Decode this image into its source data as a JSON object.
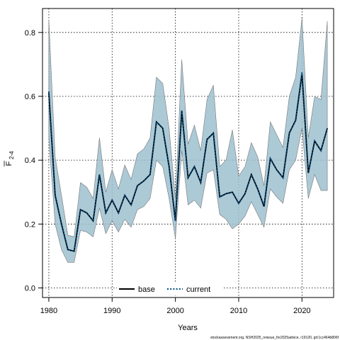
{
  "chart_data": {
    "type": "line",
    "title": "",
    "xlabel": "Years",
    "ylabel_main": "F",
    "ylabel_sub": "2-4",
    "xlim": [
      1979,
      2025
    ],
    "ylim": [
      -0.03,
      0.875
    ],
    "x_ticks": [
      1980,
      1990,
      2000,
      2010,
      2020
    ],
    "y_ticks": [
      0.0,
      0.2,
      0.4,
      0.6,
      0.8
    ],
    "y_tick_labels": [
      "0.0",
      "0.2",
      "0.4",
      "0.6",
      "0.8"
    ],
    "grid": true,
    "legend_position": "bottom-center",
    "colors": {
      "band": "#9dbfcf",
      "band_edge": "#777777",
      "base": "#000000",
      "current": "#004a7c"
    },
    "x": [
      1980,
      1981,
      1982,
      1983,
      1984,
      1985,
      1986,
      1987,
      1988,
      1989,
      1990,
      1991,
      1992,
      1993,
      1994,
      1995,
      1996,
      1997,
      1998,
      1999,
      2000,
      2001,
      2002,
      2003,
      2004,
      2005,
      2006,
      2007,
      2008,
      2009,
      2010,
      2011,
      2012,
      2013,
      2014,
      2015,
      2016,
      2017,
      2018,
      2019,
      2020,
      2021,
      2022,
      2023,
      2024
    ],
    "band_upper": [
      0.84,
      0.41,
      0.29,
      0.165,
      0.16,
      0.33,
      0.315,
      0.28,
      0.47,
      0.3,
      0.37,
      0.31,
      0.385,
      0.34,
      0.42,
      0.435,
      0.47,
      0.66,
      0.64,
      0.5,
      0.28,
      0.715,
      0.45,
      0.51,
      0.43,
      0.59,
      0.635,
      0.38,
      0.4,
      0.495,
      0.35,
      0.38,
      0.455,
      0.41,
      0.32,
      0.52,
      0.48,
      0.44,
      0.6,
      0.66,
      0.845,
      0.47,
      0.6,
      0.59,
      0.835
    ],
    "band_lower": [
      0.47,
      0.2,
      0.12,
      0.08,
      0.08,
      0.18,
      0.175,
      0.16,
      0.25,
      0.17,
      0.21,
      0.175,
      0.215,
      0.19,
      0.245,
      0.255,
      0.28,
      0.4,
      0.38,
      0.28,
      0.155,
      0.43,
      0.26,
      0.275,
      0.25,
      0.36,
      0.37,
      0.23,
      0.215,
      0.185,
      0.2,
      0.225,
      0.27,
      0.23,
      0.19,
      0.31,
      0.285,
      0.265,
      0.37,
      0.4,
      0.5,
      0.28,
      0.355,
      0.305,
      0.305
    ],
    "series": [
      {
        "name": "base",
        "values": [
          0.61,
          0.29,
          0.2,
          0.12,
          0.115,
          0.245,
          0.235,
          0.21,
          0.355,
          0.235,
          0.275,
          0.235,
          0.29,
          0.26,
          0.32,
          0.335,
          0.355,
          0.52,
          0.5,
          0.38,
          0.21,
          0.555,
          0.345,
          0.38,
          0.33,
          0.465,
          0.485,
          0.285,
          0.295,
          0.3,
          0.265,
          0.295,
          0.355,
          0.31,
          0.255,
          0.405,
          0.37,
          0.345,
          0.485,
          0.525,
          0.67,
          0.36,
          0.46,
          0.43,
          0.5
        ]
      },
      {
        "name": "current",
        "values": [
          0.615,
          0.29,
          0.2,
          0.12,
          0.115,
          0.245,
          0.235,
          0.21,
          0.355,
          0.235,
          0.275,
          0.235,
          0.29,
          0.26,
          0.32,
          0.335,
          0.355,
          0.52,
          0.5,
          0.38,
          0.21,
          0.555,
          0.345,
          0.38,
          0.33,
          0.465,
          0.485,
          0.285,
          0.295,
          0.3,
          0.265,
          0.295,
          0.355,
          0.31,
          0.255,
          0.405,
          0.37,
          0.345,
          0.485,
          0.525,
          0.675,
          0.36,
          0.46,
          0.43,
          0.5
        ]
      }
    ],
    "footer": "stockassessment.org, NSH2025_reissue_for2025advice, r19120, git:1cc464b806f"
  }
}
